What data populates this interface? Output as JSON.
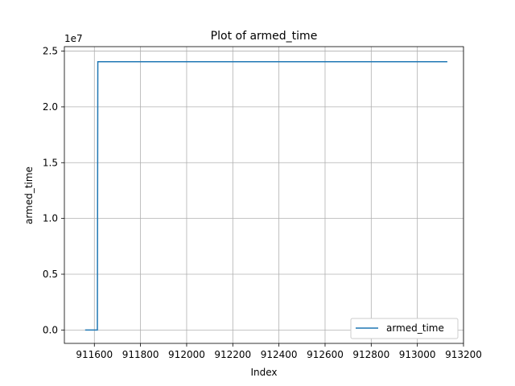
{
  "chart_data": {
    "type": "line",
    "title": "Plot of armed_time",
    "xlabel": "Index",
    "ylabel": "armed_time",
    "y_offset_label": "1e7",
    "xlim": [
      911470,
      913200
    ],
    "ylim": [
      -1200000,
      25400000
    ],
    "x_ticks": [
      911600,
      911800,
      912000,
      912200,
      912400,
      912600,
      912800,
      913000,
      913200
    ],
    "x_tick_labels": [
      "911600",
      "911800",
      "912000",
      "912200",
      "912400",
      "912600",
      "912800",
      "913000",
      "913200"
    ],
    "y_ticks": [
      0,
      5000000,
      10000000,
      15000000,
      20000000,
      25000000
    ],
    "y_tick_labels": [
      "0.0",
      "0.5",
      "1.0",
      "1.5",
      "2.0",
      "2.5"
    ],
    "grid": true,
    "legend_position": "lower-right",
    "series": [
      {
        "name": "armed_time",
        "color": "#1f77b4",
        "x": [
          911560,
          911613,
          911615,
          913130
        ],
        "y": [
          0,
          0,
          24050000,
          24050000
        ]
      }
    ]
  }
}
